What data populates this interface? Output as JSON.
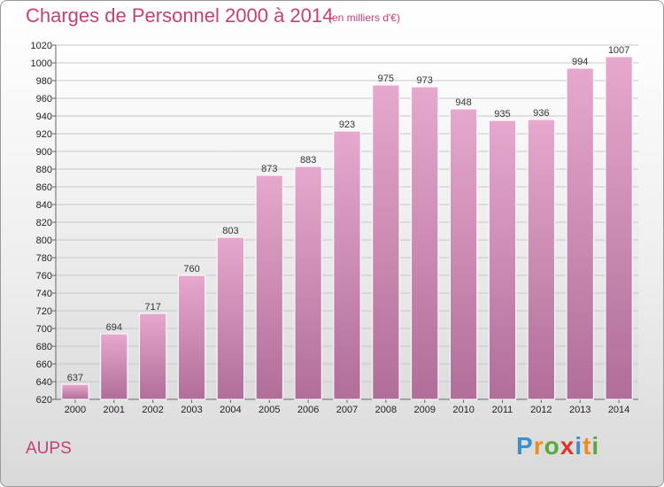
{
  "chart_data": {
    "type": "bar",
    "title": "Charges de Personnel 2000 à 2014",
    "subtitle": "(en milliers d'€)",
    "categories": [
      "2000",
      "2001",
      "2002",
      "2003",
      "2004",
      "2005",
      "2006",
      "2007",
      "2008",
      "2009",
      "2010",
      "2011",
      "2012",
      "2013",
      "2014"
    ],
    "values": [
      637,
      694,
      717,
      760,
      803,
      873,
      883,
      923,
      975,
      973,
      948,
      935,
      936,
      994,
      1007
    ],
    "ylim": [
      620,
      1020
    ],
    "yticks": [
      620,
      640,
      660,
      680,
      700,
      720,
      740,
      760,
      780,
      800,
      820,
      840,
      860,
      880,
      900,
      920,
      940,
      960,
      980,
      1000,
      1020
    ],
    "grid": true,
    "xlabel": "",
    "ylabel": ""
  },
  "commune": "AUPS",
  "logo": {
    "p": "P",
    "r": "r",
    "o": "o",
    "x": "x",
    "i1": "i",
    "t": "t",
    "i2": "i"
  },
  "colors": {
    "bar_top": "#e6a8cd",
    "bar_bottom": "#b06e98",
    "title": "#c2417a"
  }
}
